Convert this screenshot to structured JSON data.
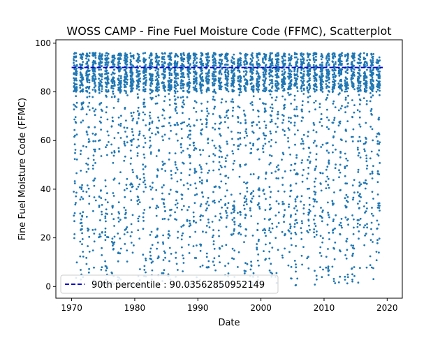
{
  "chart_data": {
    "type": "scatter",
    "title": "WOSS CAMP - Fine Fuel Moisture Code (FFMC), Scatterplot",
    "xlabel": "Date",
    "ylabel": "Fine Fuel Moisture Code (FFMC)",
    "xlim": [
      1967.5,
      2022.4
    ],
    "ylim": [
      -4.8,
      101.4
    ],
    "x_ticks": [
      1970,
      1980,
      1990,
      2000,
      2010,
      2020
    ],
    "y_ticks": [
      0,
      20,
      40,
      60,
      80,
      100
    ],
    "grid": false,
    "legend_position": "lower-left",
    "season_years": [
      1970,
      2018
    ],
    "series": [
      {
        "kind": "scatter",
        "color": "#1f77b4",
        "distribution": "daily fire-season values, mostly 80-96, spread down to about 0",
        "dense_band": [
          80,
          96
        ],
        "min": 0,
        "max": 97
      },
      {
        "name": "90th percentile : 90.03562850952149",
        "kind": "hline",
        "value": 90.03562850952149,
        "x_range": [
          1970,
          2019.3
        ],
        "color": "#0000cc",
        "dashed": true
      }
    ]
  }
}
